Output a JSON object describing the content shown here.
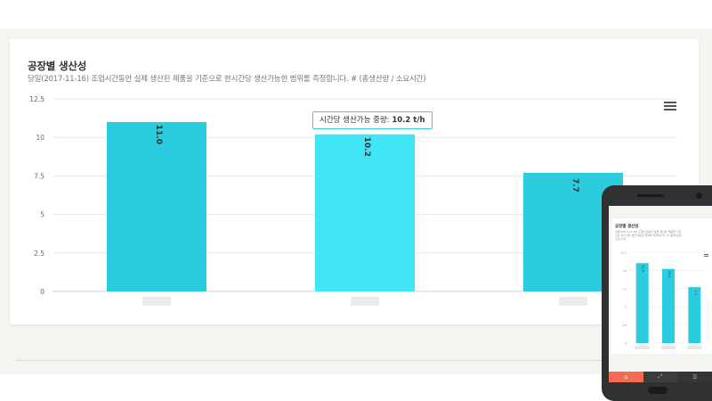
{
  "card": {
    "title": "공장별 생산성",
    "subtitle": "당일(2017-11-16) 조업시간동안 실제 생산된 제품을 기준으로 한시간당 생산가능한 범위를 측정합니다. # (총생산량 / 소요시간)"
  },
  "tooltip": {
    "label": "시간당 생산가능 중량:",
    "value": "10.2 t/h"
  },
  "menu_icon": "hamburger-icon",
  "colors": {
    "bar": "#2accde",
    "bar_highlight": "#41e6f6",
    "tooltip_border": "#38c9e6",
    "nav_active": "#f46b52"
  },
  "chart_data": {
    "type": "bar",
    "categories": [
      "",
      "",
      ""
    ],
    "values": [
      11.0,
      10.2,
      7.7
    ],
    "highlighted_index": 1,
    "yticks": [
      0,
      2.5,
      5,
      7.5,
      10,
      12.5
    ],
    "ylim": [
      0,
      12.5
    ],
    "grid": true,
    "data_labels": true,
    "title": "",
    "xlabel": "",
    "ylabel": ""
  },
  "phone": {
    "title": "공장별 생산성",
    "subtitle": "당일(2017-11-16) 조업시간동안 실제 생산된 제품을 기준으로 한시간당 생산가능한 범위를 측정합니다. # (총생산량 / 소요시간)",
    "nav": [
      {
        "icon": "home-icon",
        "glyph": "⌂"
      },
      {
        "icon": "chart-icon",
        "glyph": "⤢"
      },
      {
        "icon": "list-icon",
        "glyph": "☰"
      }
    ]
  }
}
